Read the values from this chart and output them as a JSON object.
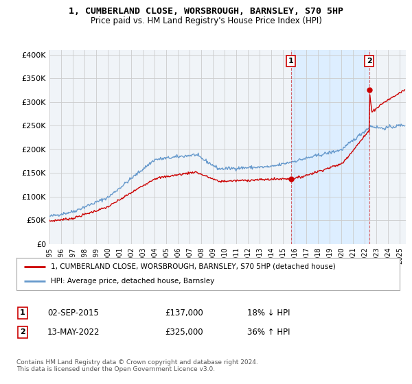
{
  "title": "1, CUMBERLAND CLOSE, WORSBROUGH, BARNSLEY, S70 5HP",
  "subtitle": "Price paid vs. HM Land Registry's House Price Index (HPI)",
  "ylabel_ticks": [
    "£0",
    "£50K",
    "£100K",
    "£150K",
    "£200K",
    "£250K",
    "£300K",
    "£350K",
    "£400K"
  ],
  "ylabel_values": [
    0,
    50000,
    100000,
    150000,
    200000,
    250000,
    300000,
    350000,
    400000
  ],
  "ylim": [
    0,
    410000
  ],
  "xlim_start": 1995.0,
  "xlim_end": 2025.5,
  "hpi_color": "#6699cc",
  "sale_color": "#cc0000",
  "sale1_x": 2015.67,
  "sale1_y": 137000,
  "sale1_label": "1",
  "sale2_x": 2022.37,
  "sale2_y": 325000,
  "sale2_label": "2",
  "vline_color": "#cc0000",
  "shade_color": "#ddeeff",
  "grid_color": "#cccccc",
  "background_color": "#ffffff",
  "plot_bg_color": "#f0f4f8",
  "legend_line1": "1, CUMBERLAND CLOSE, WORSBROUGH, BARNSLEY, S70 5HP (detached house)",
  "legend_line2": "HPI: Average price, detached house, Barnsley",
  "annotation1_date": "02-SEP-2015",
  "annotation1_price": "£137,000",
  "annotation1_hpi": "18% ↓ HPI",
  "annotation2_date": "13-MAY-2022",
  "annotation2_price": "£325,000",
  "annotation2_hpi": "36% ↑ HPI",
  "footer": "Contains HM Land Registry data © Crown copyright and database right 2024.\nThis data is licensed under the Open Government Licence v3.0.",
  "xtick_years": [
    1995,
    1996,
    1997,
    1998,
    1999,
    2000,
    2001,
    2002,
    2003,
    2004,
    2005,
    2006,
    2007,
    2008,
    2009,
    2010,
    2011,
    2012,
    2013,
    2014,
    2015,
    2016,
    2017,
    2018,
    2019,
    2020,
    2021,
    2022,
    2023,
    2024,
    2025
  ]
}
